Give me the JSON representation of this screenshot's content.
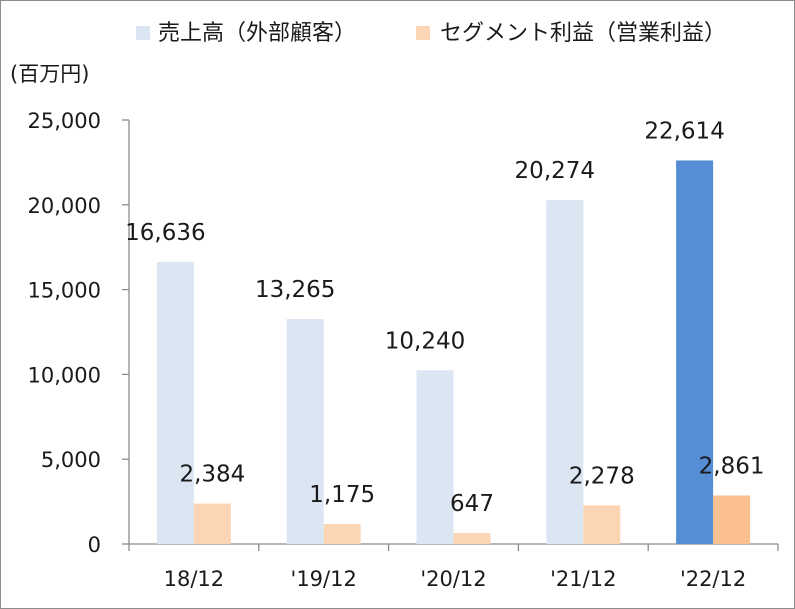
{
  "chart_data": {
    "type": "bar",
    "unit_label": "(百万円)",
    "categories": [
      "18/12",
      "'19/12",
      "'20/12",
      "'21/12",
      "'22/12"
    ],
    "ylim": [
      0,
      25000
    ],
    "yticks": [
      0,
      5000,
      10000,
      15000,
      20000,
      25000
    ],
    "ytick_labels": [
      "0",
      "5,000",
      "10,000",
      "15,000",
      "20,000",
      "25,000"
    ],
    "grid": false,
    "legend_position": "top",
    "series": [
      {
        "name": "売上高（外部顧客）",
        "values": [
          16636,
          13265,
          10240,
          20274,
          22614
        ],
        "value_labels": [
          "16,636",
          "13,265",
          "10,240",
          "20,274",
          "22,614"
        ],
        "color": "#dce6f2",
        "highlight_color": "#558ed5"
      },
      {
        "name": "セグメント利益（営業利益）",
        "values": [
          2384,
          1175,
          647,
          2278,
          2861
        ],
        "value_labels": [
          "2,384",
          "1,175",
          "647",
          "2,278",
          "2,861"
        ],
        "color": "#fcd5b5",
        "highlight_color": "#fac090"
      }
    ],
    "highlighted_category": "'22/12"
  }
}
